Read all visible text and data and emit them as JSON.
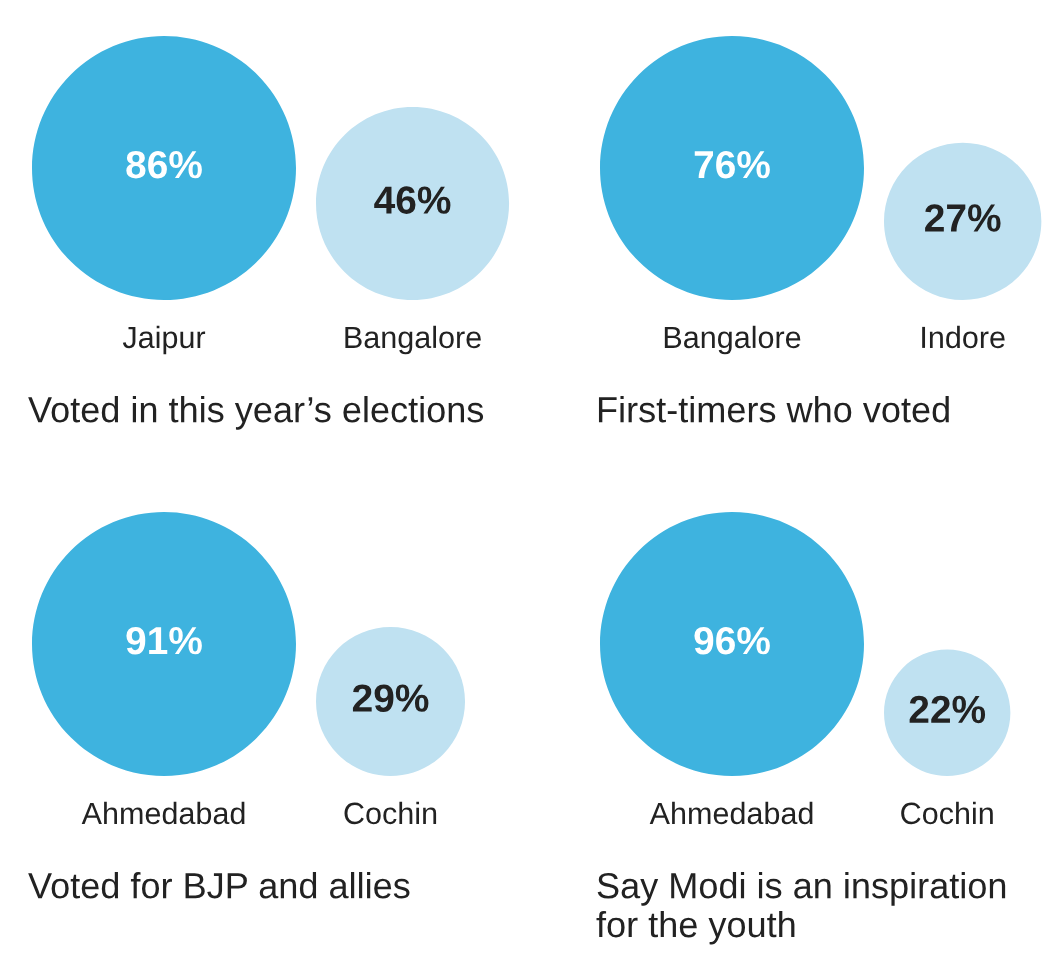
{
  "chart_data": [
    {
      "type": "other",
      "title": "Voted in this year’s elections",
      "categories": [
        "Jaipur",
        "Bangalore"
      ],
      "values": [
        86,
        46
      ],
      "colors": [
        "#3eb3df",
        "#bfe1f1"
      ],
      "value_labels": [
        "86%",
        "46%"
      ]
    },
    {
      "type": "other",
      "title": "First-timers who voted",
      "categories": [
        "Bangalore",
        "Indore"
      ],
      "values": [
        76,
        27
      ],
      "colors": [
        "#3eb3df",
        "#bfe1f1"
      ],
      "value_labels": [
        "76%",
        "27%"
      ]
    },
    {
      "type": "other",
      "title": "Voted for BJP and allies",
      "categories": [
        "Ahmedabad",
        "Cochin"
      ],
      "values": [
        91,
        29
      ],
      "colors": [
        "#3eb3df",
        "#bfe1f1"
      ],
      "value_labels": [
        "91%",
        "29%"
      ]
    },
    {
      "type": "other",
      "title": "Say Modi is an inspiration for the youth",
      "categories": [
        "Ahmedabad",
        "Cochin"
      ],
      "values": [
        96,
        22
      ],
      "colors": [
        "#3eb3df",
        "#bfe1f1"
      ],
      "value_labels": [
        "96%",
        "22%"
      ]
    }
  ]
}
